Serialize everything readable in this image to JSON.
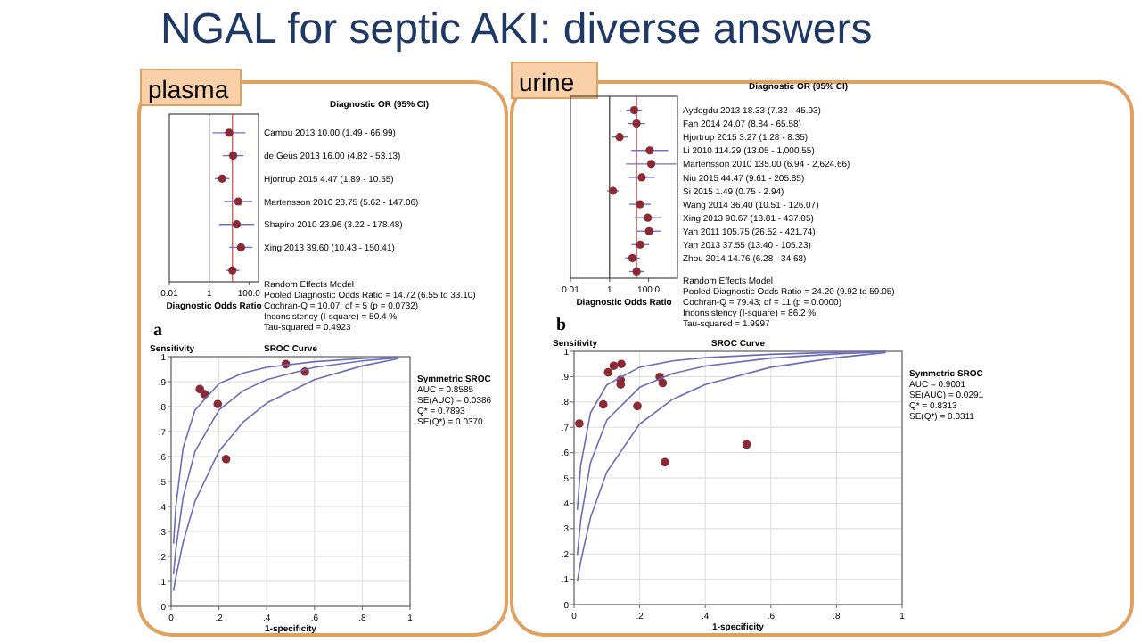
{
  "chart_data": [
    {
      "type": "scatter",
      "orientation": "horizontal",
      "title": "NGAL for septic AKI: diverse answers",
      "subtitle": "plasma",
      "xlabel": "Diagnostic Odds Ratio",
      "log": "x",
      "xlim": [
        0.01,
        300
      ],
      "xticks": [
        0.01,
        1,
        {
          "value": 100,
          "label": "100.0"
        }
      ],
      "marker": "circle",
      "color": "#8b2a35",
      "categories": [
        "Camou 2013 10.00 (1.49 - 66.99)",
        "de Geus 2013 16.00 (4.82 - 53.13)",
        "Hjortrup 2015 4.47 (1.89 - 10.55)",
        "Martensson 2010 28.75 (5.62 - 147.06)",
        "Shapiro 2010 23.96 (3.22 - 178.48)",
        "Xing 2013 39.60 (10.43 - 150.41)",
        null
      ],
      "values": [
        10.0,
        16.0,
        4.47,
        28.75,
        23.96,
        39.6,
        14.72
      ],
      "errors": [
        [
          1.49,
          66.99
        ],
        [
          4.82,
          53.13
        ],
        [
          1.89,
          10.55
        ],
        [
          5.62,
          147.06
        ],
        [
          3.22,
          178.48
        ],
        [
          10.43,
          150.41
        ],
        [
          6.55,
          33.1
        ]
      ],
      "ref_lines": [
        {
          "axis": "x",
          "value": 1,
          "color": "#333333"
        },
        {
          "axis": "x",
          "value": 14.72,
          "color": "#d04040"
        }
      ],
      "annotations": [
        "Diagnostic OR (95% CI)",
        "Random Effects Model",
        "Pooled Diagnostic Odds Ratio = 14.72 (6.55 to 33.10)",
        "Cochran-Q = 10.07; df = 5 (p = 0.0732)",
        "Inconsistency (I-square) = 50.4 %",
        "Tau-squared = 0.4923"
      ]
    },
    {
      "type": "scatter",
      "orientation": "horizontal",
      "subtitle": "urine",
      "xlabel": "Diagnostic Odds Ratio",
      "log": "x",
      "xlim": [
        0.01,
        3000
      ],
      "xticks": [
        0.01,
        1,
        {
          "value": 100,
          "label": "100.0"
        }
      ],
      "marker": "circle",
      "color": "#8b2a35",
      "categories": [
        "Aydogdu 2013 18.33 (7.32 - 45.93)",
        "Fan 2014 24.07 (8.84 - 65.58)",
        "Hjortrup 2015 3.27 (1.28 - 8.35)",
        "Li 2010 114.29 (13.05 - 1,000.55)",
        "Martensson 2010 135.00 (6.94 - 2,624.66)",
        "Niu 2015 44.47 (9.61 - 205.85)",
        "Si 2015 1.49 (0.75 - 2.94)",
        "Wang 2014 36.40 (10.51 - 126.07)",
        "Xing 2013 90.67 (18.81 - 437.05)",
        "Yan 2011 105.75 (26.52 - 421.74)",
        "Yan 2013 37.55 (13.40 - 105.23)",
        "Zhou 2014 14.76 (6.28 - 34.68)",
        null
      ],
      "values": [
        18.33,
        24.07,
        3.27,
        114.29,
        135.0,
        44.47,
        1.49,
        36.4,
        90.67,
        105.75,
        37.55,
        14.76,
        24.2
      ],
      "errors": [
        [
          7.32,
          45.93
        ],
        [
          8.84,
          65.58
        ],
        [
          1.28,
          8.35
        ],
        [
          13.05,
          1000.55
        ],
        [
          6.94,
          2624.66
        ],
        [
          9.61,
          205.85
        ],
        [
          0.75,
          2.94
        ],
        [
          10.51,
          126.07
        ],
        [
          18.81,
          437.05
        ],
        [
          26.52,
          421.74
        ],
        [
          13.4,
          105.23
        ],
        [
          6.28,
          34.68
        ],
        [
          9.92,
          59.05
        ]
      ],
      "ref_lines": [
        {
          "axis": "x",
          "value": 1,
          "color": "#333333"
        },
        {
          "axis": "x",
          "value": 24.2,
          "color": "#d04040"
        }
      ],
      "annotations": [
        "Diagnostic OR (95% CI)",
        "Random Effects Model",
        "Pooled Diagnostic Odds Ratio = 24.20 (9.92 to 59.05)",
        "Cochran-Q = 79.43; df = 11 (p = 0.0000)",
        "Inconsistency (I-square) = 86.2 %",
        "Tau-squared = 1.9997"
      ]
    },
    {
      "type": "scatter",
      "title": "SROC Curve",
      "xlabel": "1-specificity",
      "ylabel": "Sensitivity",
      "xlim": [
        0,
        1
      ],
      "ylim": [
        0,
        1
      ],
      "grid": true,
      "xticks": [
        {
          "value": 0,
          "label": "0"
        },
        {
          "value": 0.2,
          "label": ".2"
        },
        {
          "value": 0.4,
          "label": ".4"
        },
        {
          "value": 0.6,
          "label": ".6"
        },
        {
          "value": 0.8,
          "label": ".8"
        },
        {
          "value": 1,
          "label": "1"
        }
      ],
      "yticks": [
        {
          "value": 0,
          "label": "0"
        },
        {
          "value": 0.1,
          "label": ".1"
        },
        {
          "value": 0.2,
          "label": ".2"
        },
        {
          "value": 0.3,
          "label": ".3"
        },
        {
          "value": 0.4,
          "label": ".4"
        },
        {
          "value": 0.5,
          "label": ".5"
        },
        {
          "value": 0.6,
          "label": ".6"
        },
        {
          "value": 0.7,
          "label": ".7"
        },
        {
          "value": 0.8,
          "label": ".8"
        },
        {
          "value": 0.9,
          "label": ".9"
        },
        {
          "value": 1,
          "label": "1"
        }
      ],
      "series": [
        {
          "type": "scatter",
          "marker": "circle",
          "color": "#8b2a35",
          "x": [
            0.48,
            0.56,
            0.12,
            0.14,
            0.195,
            0.23
          ],
          "values": [
            0.97,
            0.94,
            0.87,
            0.85,
            0.81,
            0.59
          ]
        },
        {
          "type": "line",
          "color": "#6a6fb5",
          "x": [
            0.01,
            0.02,
            0.05,
            0.1,
            0.2,
            0.3,
            0.4,
            0.6,
            0.8,
            0.95
          ],
          "values": [
            0.251,
            0.403,
            0.635,
            0.786,
            0.892,
            0.934,
            0.957,
            0.98,
            0.993,
            0.998
          ]
        },
        {
          "type": "line",
          "color": "#6a6fb5",
          "x": [
            0.01,
            0.02,
            0.05,
            0.1,
            0.2,
            0.3,
            0.4,
            0.6,
            0.8,
            0.95
          ],
          "values": [
            0.129,
            0.231,
            0.437,
            0.621,
            0.786,
            0.863,
            0.908,
            0.957,
            0.983,
            0.996
          ]
        },
        {
          "type": "line",
          "color": "#6a6fb5",
          "x": [
            0.01,
            0.02,
            0.05,
            0.1,
            0.2,
            0.3,
            0.4,
            0.6,
            0.8,
            0.95
          ],
          "values": [
            0.062,
            0.118,
            0.256,
            0.421,
            0.621,
            0.737,
            0.814,
            0.908,
            0.963,
            0.992
          ]
        }
      ],
      "annotations": [
        "a",
        "Symmetric SROC",
        "AUC = 0.8585",
        "SE(AUC) = 0.0386",
        "Q* = 0.7893",
        "SE(Q*) = 0.0370"
      ]
    },
    {
      "type": "scatter",
      "title": "SROC Curve",
      "xlabel": "1-specificity",
      "ylabel": "Sensitivity",
      "xlim": [
        0,
        1
      ],
      "ylim": [
        0,
        1
      ],
      "grid": true,
      "xticks": [
        0,
        {
          "value": 0.2,
          "label": ".2"
        },
        {
          "value": 0.4,
          "label": ".4"
        },
        {
          "value": 0.6,
          "label": ".6"
        },
        {
          "value": 0.8,
          "label": ".8"
        },
        1
      ],
      "yticks": [
        0,
        {
          "value": 0.1,
          "label": ".1"
        },
        {
          "value": 0.2,
          "label": ".2"
        },
        {
          "value": 0.3,
          "label": ".3"
        },
        {
          "value": 0.4,
          "label": ".4"
        },
        {
          "value": 0.5,
          "label": ".5"
        },
        {
          "value": 0.6,
          "label": ".6"
        },
        {
          "value": 0.7,
          "label": ".7"
        },
        {
          "value": 0.8,
          "label": ".8"
        },
        {
          "value": 0.9,
          "label": ".9"
        },
        1
      ],
      "series": [
        {
          "type": "scatter",
          "marker": "circle",
          "color": "#8b2a35",
          "x": [
            0.016,
            0.089,
            0.104,
            0.121,
            0.144,
            0.142,
            0.142,
            0.193,
            0.261,
            0.27,
            0.526,
            0.277
          ],
          "values": [
            0.715,
            0.79,
            0.917,
            0.943,
            0.95,
            0.887,
            0.869,
            0.784,
            0.899,
            0.875,
            0.632,
            0.562
          ]
        },
        {
          "type": "line",
          "color": "#6a6fb5",
          "x": [
            0.01,
            0.02,
            0.05,
            0.1,
            0.2,
            0.3,
            0.4,
            0.6,
            0.8,
            0.95
          ],
          "values": [
            0.374,
            0.547,
            0.757,
            0.868,
            0.937,
            0.962,
            0.975,
            0.988,
            0.996,
            0.999
          ]
        },
        {
          "type": "line",
          "color": "#6a6fb5",
          "x": [
            0.01,
            0.02,
            0.05,
            0.1,
            0.2,
            0.3,
            0.4,
            0.6,
            0.8,
            0.95
          ],
          "values": [
            0.196,
            0.331,
            0.56,
            0.729,
            0.858,
            0.912,
            0.942,
            0.973,
            0.99,
            0.998
          ]
        },
        {
          "type": "line",
          "color": "#6a6fb5",
          "x": [
            0.01,
            0.02,
            0.05,
            0.1,
            0.2,
            0.3,
            0.4,
            0.6,
            0.8,
            0.95
          ],
          "values": [
            0.091,
            0.168,
            0.343,
            0.524,
            0.713,
            0.81,
            0.869,
            0.937,
            0.975,
            0.995
          ]
        }
      ],
      "annotations": [
        "b",
        "Symmetric SROC",
        "AUC = 0.9001",
        "SE(AUC) = 0.0291",
        "Q* = 0.8313",
        "SE(Q*) = 0.0311"
      ]
    }
  ]
}
